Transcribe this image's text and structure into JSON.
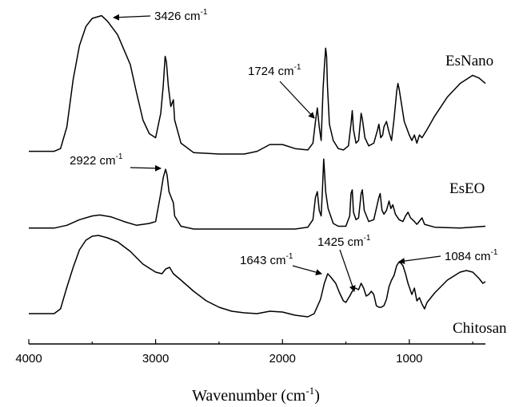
{
  "chart_data": {
    "type": "line",
    "xlabel": "Wavenumber (cm-1)",
    "xlabel_main": "Wavenumber (cm",
    "xlabel_sup": "-1",
    "xlabel_close": ")",
    "xlim": [
      4000,
      400
    ],
    "x_reversed": true,
    "x_ticks": [
      4000,
      3000,
      2000,
      1000
    ],
    "x_tick_labels": [
      "4000",
      "3000",
      "2000",
      "1000"
    ],
    "y_axis_shown": false,
    "grid": false,
    "series": [
      {
        "name": "EsNano",
        "points": [
          [
            4000,
            2
          ],
          [
            3800,
            2
          ],
          [
            3750,
            4
          ],
          [
            3700,
            20
          ],
          [
            3650,
            55
          ],
          [
            3600,
            80
          ],
          [
            3550,
            94
          ],
          [
            3500,
            100
          ],
          [
            3426,
            102
          ],
          [
            3380,
            98
          ],
          [
            3300,
            88
          ],
          [
            3200,
            66
          ],
          [
            3150,
            45
          ],
          [
            3100,
            25
          ],
          [
            3050,
            15
          ],
          [
            3000,
            12
          ],
          [
            2960,
            30
          ],
          [
            2940,
            50
          ],
          [
            2925,
            72
          ],
          [
            2915,
            68
          ],
          [
            2900,
            50
          ],
          [
            2880,
            35
          ],
          [
            2860,
            40
          ],
          [
            2850,
            25
          ],
          [
            2800,
            8
          ],
          [
            2700,
            1
          ],
          [
            2500,
            0
          ],
          [
            2300,
            0
          ],
          [
            2200,
            2
          ],
          [
            2100,
            7
          ],
          [
            2000,
            7
          ],
          [
            1900,
            4
          ],
          [
            1800,
            3
          ],
          [
            1760,
            8
          ],
          [
            1740,
            24
          ],
          [
            1725,
            34
          ],
          [
            1710,
            20
          ],
          [
            1695,
            10
          ],
          [
            1680,
            48
          ],
          [
            1670,
            64
          ],
          [
            1660,
            78
          ],
          [
            1652,
            72
          ],
          [
            1645,
            50
          ],
          [
            1630,
            22
          ],
          [
            1600,
            10
          ],
          [
            1560,
            4
          ],
          [
            1520,
            3
          ],
          [
            1480,
            6
          ],
          [
            1460,
            22
          ],
          [
            1450,
            32
          ],
          [
            1440,
            18
          ],
          [
            1420,
            8
          ],
          [
            1400,
            10
          ],
          [
            1380,
            30
          ],
          [
            1370,
            26
          ],
          [
            1350,
            12
          ],
          [
            1320,
            6
          ],
          [
            1280,
            8
          ],
          [
            1250,
            18
          ],
          [
            1240,
            22
          ],
          [
            1225,
            12
          ],
          [
            1210,
            14
          ],
          [
            1200,
            20
          ],
          [
            1180,
            24
          ],
          [
            1160,
            16
          ],
          [
            1140,
            10
          ],
          [
            1120,
            26
          ],
          [
            1100,
            46
          ],
          [
            1090,
            52
          ],
          [
            1080,
            48
          ],
          [
            1060,
            36
          ],
          [
            1040,
            24
          ],
          [
            1000,
            14
          ],
          [
            980,
            10
          ],
          [
            960,
            14
          ],
          [
            940,
            8
          ],
          [
            920,
            14
          ],
          [
            900,
            12
          ],
          [
            860,
            18
          ],
          [
            800,
            28
          ],
          [
            700,
            42
          ],
          [
            600,
            52
          ],
          [
            500,
            58
          ],
          [
            450,
            56
          ],
          [
            400,
            52
          ]
        ]
      },
      {
        "name": "EsEO",
        "points": [
          [
            4000,
            1
          ],
          [
            3800,
            1
          ],
          [
            3700,
            4
          ],
          [
            3600,
            10
          ],
          [
            3500,
            14
          ],
          [
            3440,
            15
          ],
          [
            3350,
            13
          ],
          [
            3250,
            8
          ],
          [
            3150,
            4
          ],
          [
            3050,
            6
          ],
          [
            3000,
            8
          ],
          [
            2960,
            38
          ],
          [
            2940,
            55
          ],
          [
            2922,
            64
          ],
          [
            2910,
            58
          ],
          [
            2895,
            40
          ],
          [
            2880,
            35
          ],
          [
            2860,
            28
          ],
          [
            2850,
            14
          ],
          [
            2800,
            3
          ],
          [
            2700,
            0
          ],
          [
            2400,
            0
          ],
          [
            2100,
            0
          ],
          [
            1900,
            0
          ],
          [
            1800,
            2
          ],
          [
            1760,
            10
          ],
          [
            1740,
            34
          ],
          [
            1725,
            40
          ],
          [
            1710,
            20
          ],
          [
            1695,
            14
          ],
          [
            1685,
            42
          ],
          [
            1675,
            75
          ],
          [
            1668,
            60
          ],
          [
            1660,
            40
          ],
          [
            1640,
            22
          ],
          [
            1600,
            6
          ],
          [
            1560,
            3
          ],
          [
            1500,
            3
          ],
          [
            1470,
            14
          ],
          [
            1460,
            38
          ],
          [
            1450,
            42
          ],
          [
            1440,
            18
          ],
          [
            1420,
            10
          ],
          [
            1400,
            12
          ],
          [
            1380,
            38
          ],
          [
            1370,
            42
          ],
          [
            1355,
            20
          ],
          [
            1320,
            8
          ],
          [
            1280,
            10
          ],
          [
            1240,
            34
          ],
          [
            1230,
            38
          ],
          [
            1215,
            20
          ],
          [
            1200,
            16
          ],
          [
            1180,
            20
          ],
          [
            1160,
            30
          ],
          [
            1145,
            22
          ],
          [
            1130,
            26
          ],
          [
            1110,
            16
          ],
          [
            1080,
            10
          ],
          [
            1050,
            8
          ],
          [
            1030,
            14
          ],
          [
            1010,
            18
          ],
          [
            990,
            12
          ],
          [
            960,
            8
          ],
          [
            940,
            5
          ],
          [
            900,
            12
          ],
          [
            880,
            5
          ],
          [
            800,
            2
          ],
          [
            600,
            1
          ],
          [
            400,
            3
          ]
        ]
      },
      {
        "name": "Chitosan",
        "points": [
          [
            4000,
            2
          ],
          [
            3800,
            2
          ],
          [
            3750,
            8
          ],
          [
            3700,
            35
          ],
          [
            3650,
            60
          ],
          [
            3600,
            82
          ],
          [
            3550,
            94
          ],
          [
            3500,
            99
          ],
          [
            3450,
            100
          ],
          [
            3380,
            97
          ],
          [
            3300,
            92
          ],
          [
            3200,
            80
          ],
          [
            3100,
            64
          ],
          [
            3000,
            54
          ],
          [
            2950,
            52
          ],
          [
            2920,
            58
          ],
          [
            2890,
            60
          ],
          [
            2860,
            52
          ],
          [
            2800,
            44
          ],
          [
            2700,
            30
          ],
          [
            2600,
            18
          ],
          [
            2500,
            10
          ],
          [
            2400,
            5
          ],
          [
            2300,
            3
          ],
          [
            2200,
            2
          ],
          [
            2100,
            5
          ],
          [
            2000,
            4
          ],
          [
            1900,
            0
          ],
          [
            1800,
            -2
          ],
          [
            1750,
            2
          ],
          [
            1700,
            20
          ],
          [
            1670,
            40
          ],
          [
            1643,
            52
          ],
          [
            1620,
            48
          ],
          [
            1580,
            40
          ],
          [
            1550,
            28
          ],
          [
            1520,
            18
          ],
          [
            1500,
            16
          ],
          [
            1470,
            24
          ],
          [
            1450,
            30
          ],
          [
            1425,
            34
          ],
          [
            1400,
            32
          ],
          [
            1380,
            40
          ],
          [
            1360,
            34
          ],
          [
            1340,
            24
          ],
          [
            1320,
            26
          ],
          [
            1300,
            30
          ],
          [
            1280,
            26
          ],
          [
            1260,
            12
          ],
          [
            1240,
            10
          ],
          [
            1220,
            10
          ],
          [
            1200,
            12
          ],
          [
            1180,
            20
          ],
          [
            1160,
            36
          ],
          [
            1140,
            44
          ],
          [
            1120,
            50
          ],
          [
            1100,
            62
          ],
          [
            1084,
            66
          ],
          [
            1070,
            66
          ],
          [
            1050,
            62
          ],
          [
            1030,
            52
          ],
          [
            1010,
            40
          ],
          [
            980,
            26
          ],
          [
            960,
            34
          ],
          [
            940,
            18
          ],
          [
            920,
            22
          ],
          [
            900,
            14
          ],
          [
            880,
            8
          ],
          [
            860,
            16
          ],
          [
            800,
            28
          ],
          [
            700,
            44
          ],
          [
            600,
            54
          ],
          [
            550,
            56
          ],
          [
            500,
            54
          ],
          [
            450,
            46
          ],
          [
            420,
            40
          ],
          [
            400,
            42
          ]
        ]
      }
    ],
    "annotations": [
      {
        "label": "3426 cm",
        "sup": "-1",
        "x": 3426,
        "series": "EsNano"
      },
      {
        "label": "1724 cm",
        "sup": "-1",
        "x": 1724,
        "series": "EsNano"
      },
      {
        "label": "2922 cm",
        "sup": "-1",
        "x": 2922,
        "series": "EsEO"
      },
      {
        "label": "1643 cm",
        "sup": "-1",
        "x": 1643,
        "series": "Chitosan"
      },
      {
        "label": "1425 cm",
        "sup": "-1",
        "x": 1425,
        "series": "Chitosan"
      },
      {
        "label": "1084 cm",
        "sup": "-1",
        "x": 1084,
        "series": "Chitosan"
      }
    ]
  }
}
